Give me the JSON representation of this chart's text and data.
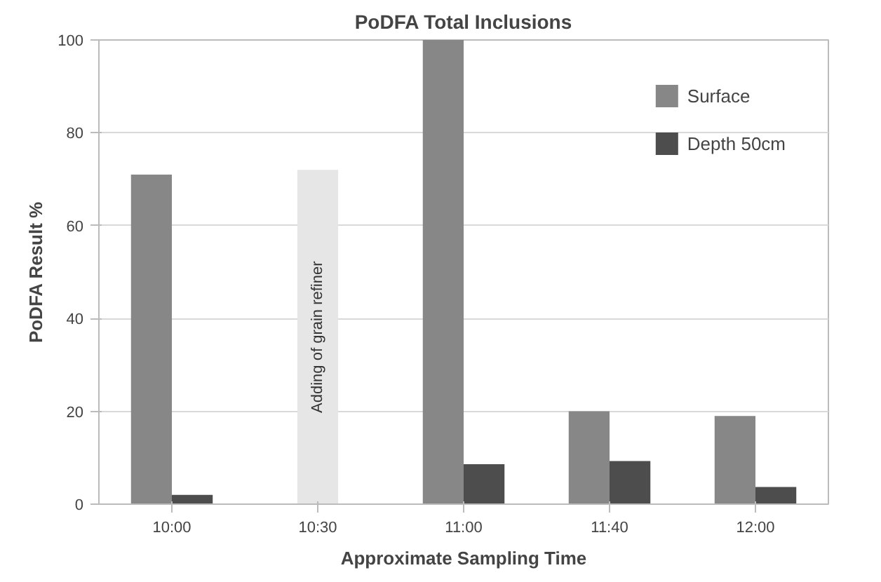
{
  "chart_data": {
    "type": "bar",
    "title": "PoDFA Total Inclusions",
    "xlabel": "Approximate Sampling Time",
    "ylabel": "PoDFA Result %",
    "categories": [
      "10:00",
      "10:30",
      "11:00",
      "11:40",
      "12:00"
    ],
    "series": [
      {
        "name": "Surface",
        "color": "#878787",
        "values": [
          71,
          null,
          100,
          20,
          19
        ]
      },
      {
        "name": "Depth 50cm",
        "color": "#4d4d4d",
        "values": [
          2,
          null,
          8.6,
          9.3,
          3.7
        ]
      },
      {
        "color": "#e6e6e6",
        "values": [
          null,
          72,
          null,
          null,
          null
        ]
      }
    ],
    "annotations": [
      "Adding of grain refiner"
    ],
    "ylim": [
      0,
      100
    ],
    "yticks": [
      0,
      20,
      40,
      60,
      80,
      100
    ],
    "grid": "y",
    "legend": "top right"
  }
}
